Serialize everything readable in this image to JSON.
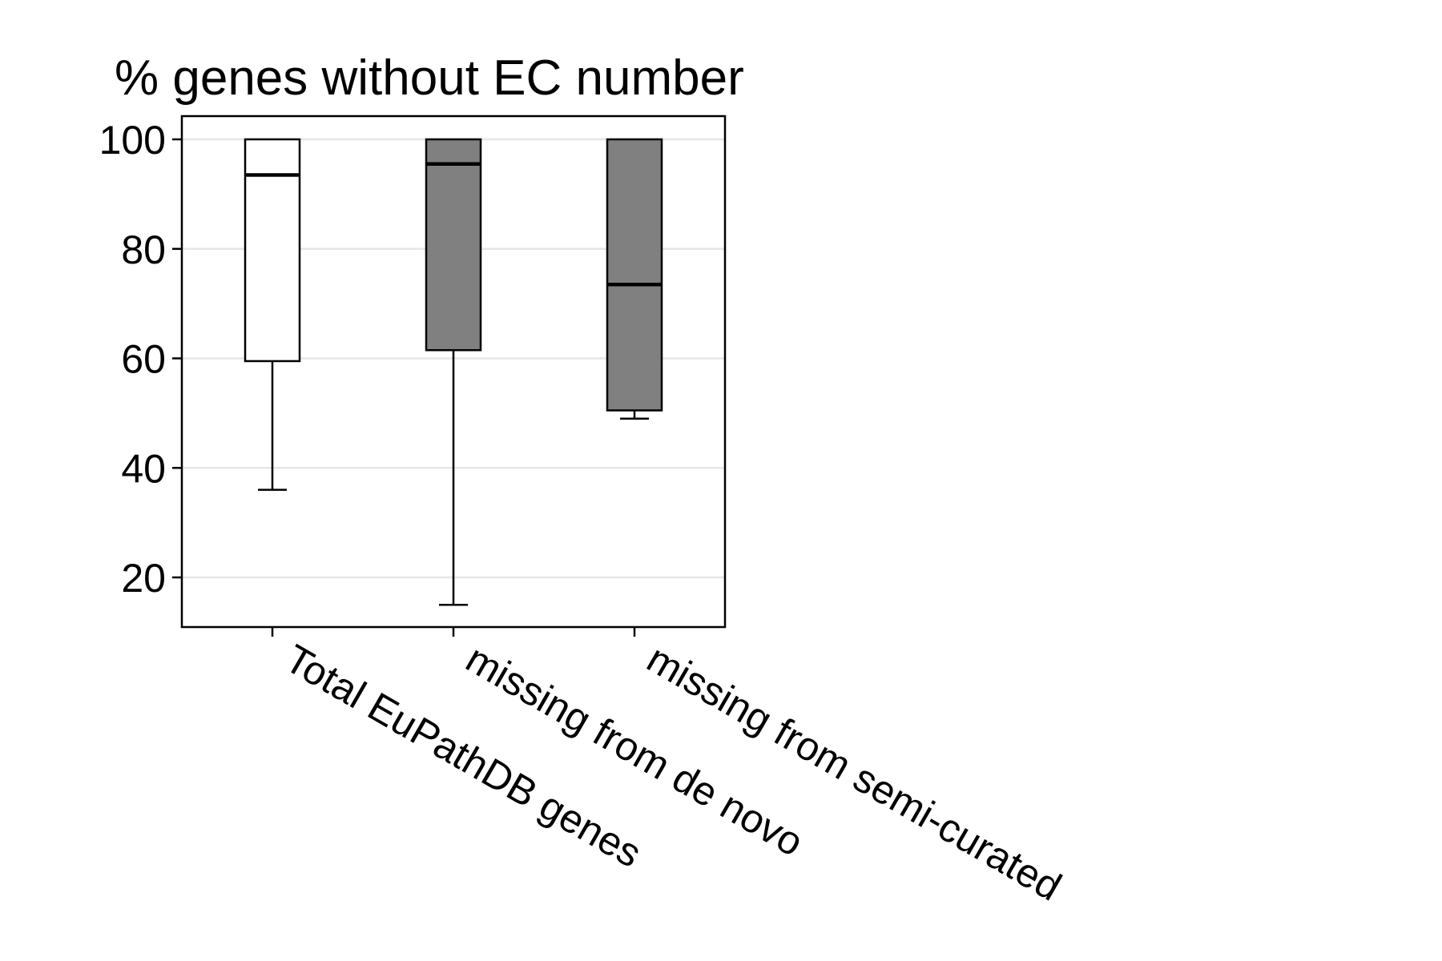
{
  "chart_data": {
    "type": "box",
    "title": "% genes without EC number",
    "xlabel": "",
    "ylabel": "",
    "ylim": [
      11,
      104
    ],
    "yticks": [
      20,
      40,
      60,
      80,
      100
    ],
    "ytick_labels": [
      "20",
      "40",
      "60",
      "80",
      "100"
    ],
    "grid": "horizontal",
    "categories": [
      "Total EuPathDB genes",
      "missing from de novo",
      "missing from semi-curated"
    ],
    "boxes": [
      {
        "category": "Total EuPathDB genes",
        "whisker_low": 36,
        "q1": 59.5,
        "median": 93.5,
        "q3": 100,
        "whisker_high": 100,
        "fill": "#ffffff"
      },
      {
        "category": "missing from de novo",
        "whisker_low": 15,
        "q1": 61.5,
        "median": 95.5,
        "q3": 100,
        "whisker_high": 100,
        "fill": "#808080"
      },
      {
        "category": "missing from semi-curated",
        "whisker_low": 49,
        "q1": 50.5,
        "median": 73.5,
        "q3": 100,
        "whisker_high": 100,
        "fill": "#808080"
      }
    ]
  },
  "colors": {
    "gray_fill": "#808080",
    "white_fill": "#ffffff",
    "grid": "#e6e6e6",
    "axis": "#000000"
  }
}
